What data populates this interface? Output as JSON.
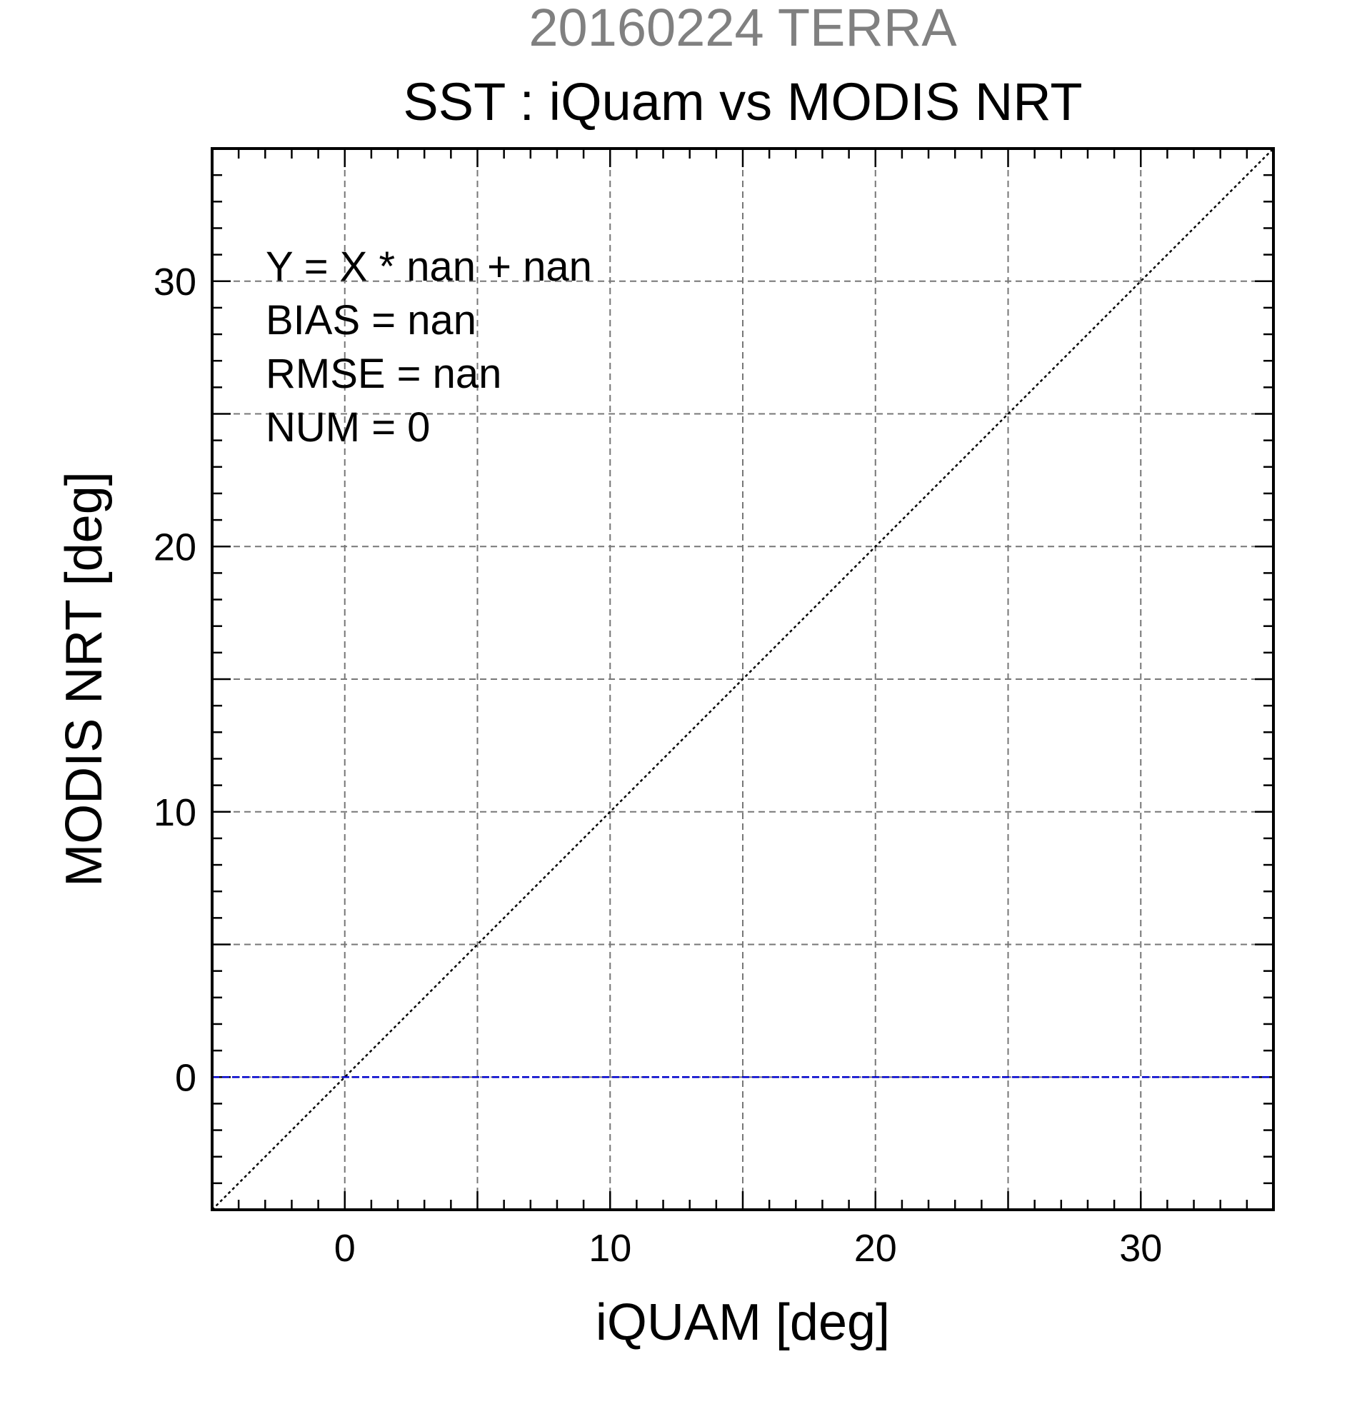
{
  "chart_data": {
    "type": "scatter",
    "supertitle": "20160224 TERRA",
    "title": "SST : iQuam vs MODIS NRT",
    "xlabel": "iQUAM [deg]",
    "ylabel": "MODIS NRT [deg]",
    "xlim": [
      -5,
      35
    ],
    "ylim": [
      -5,
      35
    ],
    "xticks": [
      0,
      10,
      20,
      30
    ],
    "yticks": [
      0,
      10,
      20,
      30
    ],
    "grid_step": 5,
    "minor_step": 1,
    "grid": true,
    "points": [],
    "reference_lines": [
      {
        "kind": "identity",
        "x": [
          -5,
          35
        ],
        "y": [
          -5,
          35
        ],
        "color": "#000000",
        "style": "dotted"
      },
      {
        "kind": "zero",
        "x": [
          -5,
          35
        ],
        "y": [
          0,
          0
        ],
        "color": "#0000cc",
        "style": "dashed"
      }
    ],
    "annotations": [
      "Y = X * nan + nan",
      "BIAS = nan",
      "RMSE = nan",
      "NUM = 0"
    ]
  }
}
